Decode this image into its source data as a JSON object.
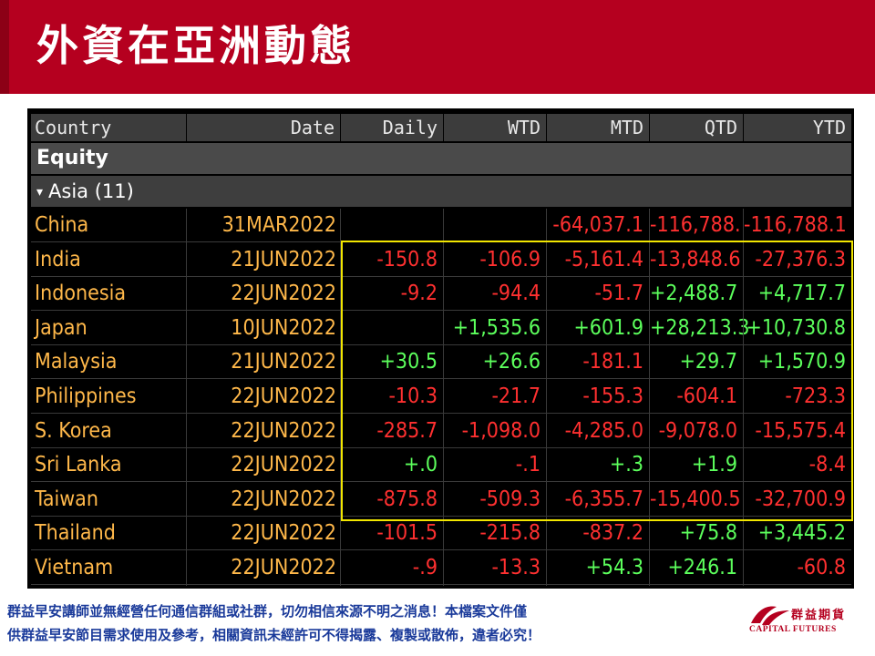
{
  "title": "外資在亞洲動態",
  "table": {
    "headers": [
      "Country",
      "Date",
      "Daily",
      "WTD",
      "MTD",
      "QTD",
      "YTD"
    ],
    "section": "Equity",
    "group": "Asia (11)",
    "rows": [
      {
        "country": "China",
        "date": "31MAR2022",
        "daily": "",
        "wtd": "",
        "mtd": "-64,037.1",
        "qtd": "-116,788.",
        "ytd": "-116,788.1"
      },
      {
        "country": "India",
        "date": "21JUN2022",
        "daily": "-150.8",
        "wtd": "-106.9",
        "mtd": "-5,161.4",
        "qtd": "-13,848.6",
        "ytd": "-27,376.3"
      },
      {
        "country": "Indonesia",
        "date": "22JUN2022",
        "daily": "-9.2",
        "wtd": "-94.4",
        "mtd": "-51.7",
        "qtd": "+2,488.7",
        "ytd": "+4,717.7"
      },
      {
        "country": "Japan",
        "date": "10JUN2022",
        "daily": "",
        "wtd": "+1,535.6",
        "mtd": "+601.9",
        "qtd": "+28,213.3",
        "ytd": "+10,730.8"
      },
      {
        "country": "Malaysia",
        "date": "21JUN2022",
        "daily": "+30.5",
        "wtd": "+26.6",
        "mtd": "-181.1",
        "qtd": "+29.7",
        "ytd": "+1,570.9"
      },
      {
        "country": "Philippines",
        "date": "22JUN2022",
        "daily": "-10.3",
        "wtd": "-21.7",
        "mtd": "-155.3",
        "qtd": "-604.1",
        "ytd": "-723.3"
      },
      {
        "country": "S. Korea",
        "date": "22JUN2022",
        "daily": "-285.7",
        "wtd": "-1,098.0",
        "mtd": "-4,285.0",
        "qtd": "-9,078.0",
        "ytd": "-15,575.4"
      },
      {
        "country": "Sri Lanka",
        "date": "22JUN2022",
        "daily": "+.0",
        "wtd": "-.1",
        "mtd": "+.3",
        "qtd": "+1.9",
        "ytd": "-8.4"
      },
      {
        "country": "Taiwan",
        "date": "22JUN2022",
        "daily": "-875.8",
        "wtd": "-509.3",
        "mtd": "-6,355.7",
        "qtd": "-15,400.5",
        "ytd": "-32,700.9"
      },
      {
        "country": "Thailand",
        "date": "22JUN2022",
        "daily": "-101.5",
        "wtd": "-215.8",
        "mtd": "-837.2",
        "qtd": "+75.8",
        "ytd": "+3,445.2"
      },
      {
        "country": "Vietnam",
        "date": "22JUN2022",
        "daily": "-.9",
        "wtd": "-13.3",
        "mtd": "+54.3",
        "qtd": "+246.1",
        "ytd": "-60.8"
      }
    ]
  },
  "footer": {
    "line1": "群益早安講師並無經營任何通信群組或社群，切勿相信來源不明之消息！本檔案文件僅",
    "line2": "供群益早安節目需求使用及參考，相關資訊未經許可不得揭露、複製或散佈，違者必究！"
  },
  "logo": {
    "name_cn": "群益期貨",
    "name_en": "CAPITAL FUTURES"
  },
  "colors": {
    "brand_red": "#b5001f",
    "negative": "#ff3030",
    "positive": "#5cff5c",
    "label_orange": "#ffb84a",
    "highlight": "#f2e600"
  }
}
